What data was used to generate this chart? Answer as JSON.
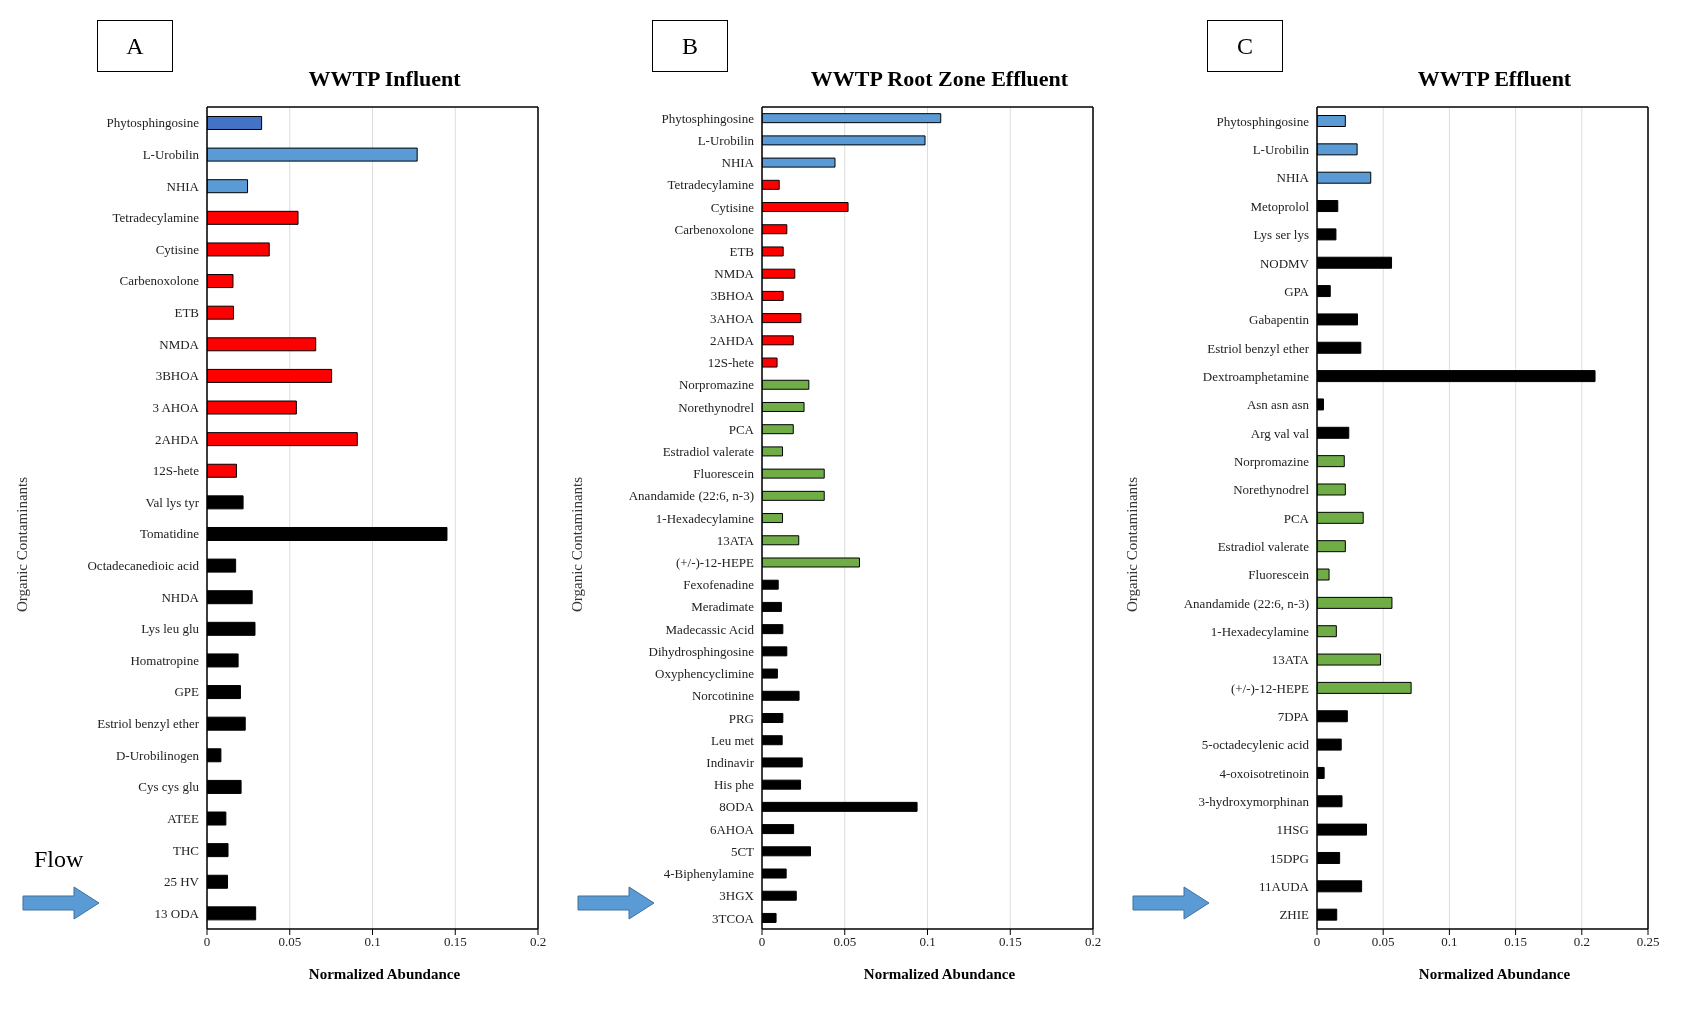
{
  "chart_data": [
    {
      "type": "bar",
      "orientation": "horizontal",
      "title": "WWTP Influent",
      "xlabel": "Normalized Abundance",
      "ylabel": "Organic Contaminants",
      "annotations": [
        "A",
        "Flow"
      ],
      "categories": [
        "Phytosphingosine",
        "L-Urobilin",
        "NHIA",
        "Tetradecylamine",
        "Cytisine",
        "Carbenoxolone",
        "ETB",
        "NMDA",
        "3BHOA",
        "3 AHOA",
        "2AHDA",
        "12S-hete",
        "Val lys tyr",
        "Tomatidine",
        "Octadecanedioic acid",
        "NHDA",
        "Lys leu glu",
        "Homatropine",
        "GPE",
        "Estriol benzyl ether",
        "D-Urobilinogen",
        "Cys cys glu",
        "ATEE",
        "THC",
        "25 HV",
        "13 ODA"
      ],
      "values": [
        0.033,
        0.127,
        0.0245,
        0.055,
        0.0376,
        0.0157,
        0.016,
        0.0657,
        0.0753,
        0.054,
        0.0908,
        0.0178,
        0.0218,
        0.145,
        0.0173,
        0.0273,
        0.029,
        0.0188,
        0.0202,
        0.0231,
        0.0084,
        0.0206,
        0.0114,
        0.0127,
        0.0124,
        0.0294
      ],
      "colors": [
        "#4472c4",
        "#5b9bd5",
        "#5b9bd5",
        "#ff0000",
        "#ff0000",
        "#ff0000",
        "#ff0000",
        "#ff0000",
        "#ff0000",
        "#ff0000",
        "#ff0000",
        "#ff0000",
        "#000000",
        "#000000",
        "#000000",
        "#000000",
        "#000000",
        "#000000",
        "#000000",
        "#000000",
        "#000000",
        "#000000",
        "#000000",
        "#000000",
        "#000000",
        "#000000"
      ],
      "xlim": [
        0,
        0.2
      ],
      "xticks": [
        0,
        0.05,
        0.1,
        0.15,
        0.2
      ],
      "grid": "x"
    },
    {
      "type": "bar",
      "orientation": "horizontal",
      "title": "WWTP Root Zone Effluent",
      "xlabel": "Normalized Abundance",
      "ylabel": "Organic Contaminants",
      "annotations": [
        "B"
      ],
      "categories": [
        "Phytosphingosine",
        "L-Urobilin",
        "NHIA",
        "Tetradecylamine",
        "Cytisine",
        "Carbenoxolone",
        "ETB",
        "NMDA",
        "3BHOA",
        "3AHOA",
        "2AHDA",
        "12S-hete",
        "Norpromazine",
        "Norethynodrel",
        "PCA",
        "Estradiol valerate",
        "Fluorescein",
        "Anandamide (22:6, n-3)",
        "1-Hexadecylamine",
        "13ATA",
        "(+/-)-12-HEPE",
        "Fexofenadine",
        "Meradimate",
        "Madecassic Acid",
        "Dihydrosphingosine",
        "Oxyphencyclimine",
        "Norcotinine",
        "PRG",
        "Leu met",
        "Indinavir",
        "His phe",
        "8ODA",
        "6AHOA",
        "5CT",
        "4-Biphenylamine",
        "3HGX",
        "3TCOA"
      ],
      "values": [
        0.108,
        0.0985,
        0.0441,
        0.0104,
        0.052,
        0.015,
        0.0128,
        0.0198,
        0.0128,
        0.0235,
        0.0189,
        0.0091,
        0.0283,
        0.0254,
        0.0189,
        0.0124,
        0.0376,
        0.0376,
        0.0124,
        0.0222,
        0.0589,
        0.0098,
        0.0117,
        0.0126,
        0.015,
        0.0093,
        0.0224,
        0.0126,
        0.0122,
        0.0243,
        0.0233,
        0.0937,
        0.0191,
        0.0293,
        0.0146,
        0.0207,
        0.0085
      ],
      "colors": [
        "#5b9bd5",
        "#5b9bd5",
        "#5b9bd5",
        "#ff0000",
        "#ff0000",
        "#ff0000",
        "#ff0000",
        "#ff0000",
        "#ff0000",
        "#ff0000",
        "#ff0000",
        "#ff0000",
        "#70ad47",
        "#70ad47",
        "#70ad47",
        "#70ad47",
        "#70ad47",
        "#70ad47",
        "#70ad47",
        "#70ad47",
        "#70ad47",
        "#000000",
        "#000000",
        "#000000",
        "#000000",
        "#000000",
        "#000000",
        "#000000",
        "#000000",
        "#000000",
        "#000000",
        "#000000",
        "#000000",
        "#000000",
        "#000000",
        "#000000",
        "#000000"
      ],
      "xlim": [
        0,
        0.2
      ],
      "xticks": [
        0,
        0.05,
        0.1,
        0.15,
        0.2
      ],
      "grid": "x"
    },
    {
      "type": "bar",
      "orientation": "horizontal",
      "title": "WWTP Effluent",
      "xlabel": "Normalized Abundance",
      "ylabel": "Organic Contaminants",
      "annotations": [
        "C"
      ],
      "categories": [
        "Phytosphingosine",
        "L-Urobilin",
        "NHIA",
        "Metoprolol",
        "Lys ser lys",
        "NODMV",
        "GPA",
        "Gabapentin",
        "Estriol benzyl ether",
        "Dextroamphetamine",
        "Asn asn asn",
        "Arg val val",
        "Norpromazine",
        "Norethynodrel",
        "PCA",
        "Estradiol valerate",
        "Fluorescein",
        "Anandamide (22:6, n-3)",
        "1-Hexadecylamine",
        "13ATA",
        "(+/-)-12-HEPE",
        "7DPA",
        "5-octadecylenic acid",
        "4-oxoisotretinoin",
        "3-hydroxymorphinan",
        "1HSG",
        "15DPG",
        "11AUDA",
        "ZHIE"
      ],
      "values": [
        0.0214,
        0.0303,
        0.0406,
        0.0157,
        0.0143,
        0.0563,
        0.01,
        0.0306,
        0.0331,
        0.21,
        0.0049,
        0.024,
        0.0206,
        0.0214,
        0.0349,
        0.0214,
        0.0091,
        0.0566,
        0.0146,
        0.048,
        0.0711,
        0.0229,
        0.0183,
        0.0054,
        0.0189,
        0.0374,
        0.0171,
        0.0337,
        0.0149
      ],
      "colors": [
        "#5b9bd5",
        "#5b9bd5",
        "#5b9bd5",
        "#000000",
        "#000000",
        "#000000",
        "#000000",
        "#000000",
        "#000000",
        "#000000",
        "#000000",
        "#000000",
        "#70ad47",
        "#70ad47",
        "#70ad47",
        "#70ad47",
        "#70ad47",
        "#70ad47",
        "#70ad47",
        "#70ad47",
        "#70ad47",
        "#000000",
        "#000000",
        "#000000",
        "#000000",
        "#000000",
        "#000000",
        "#000000",
        "#000000"
      ],
      "xlim": [
        0,
        0.25
      ],
      "xticks": [
        0,
        0.05,
        0.1,
        0.15,
        0.2,
        0.25
      ],
      "grid": "x"
    }
  ]
}
